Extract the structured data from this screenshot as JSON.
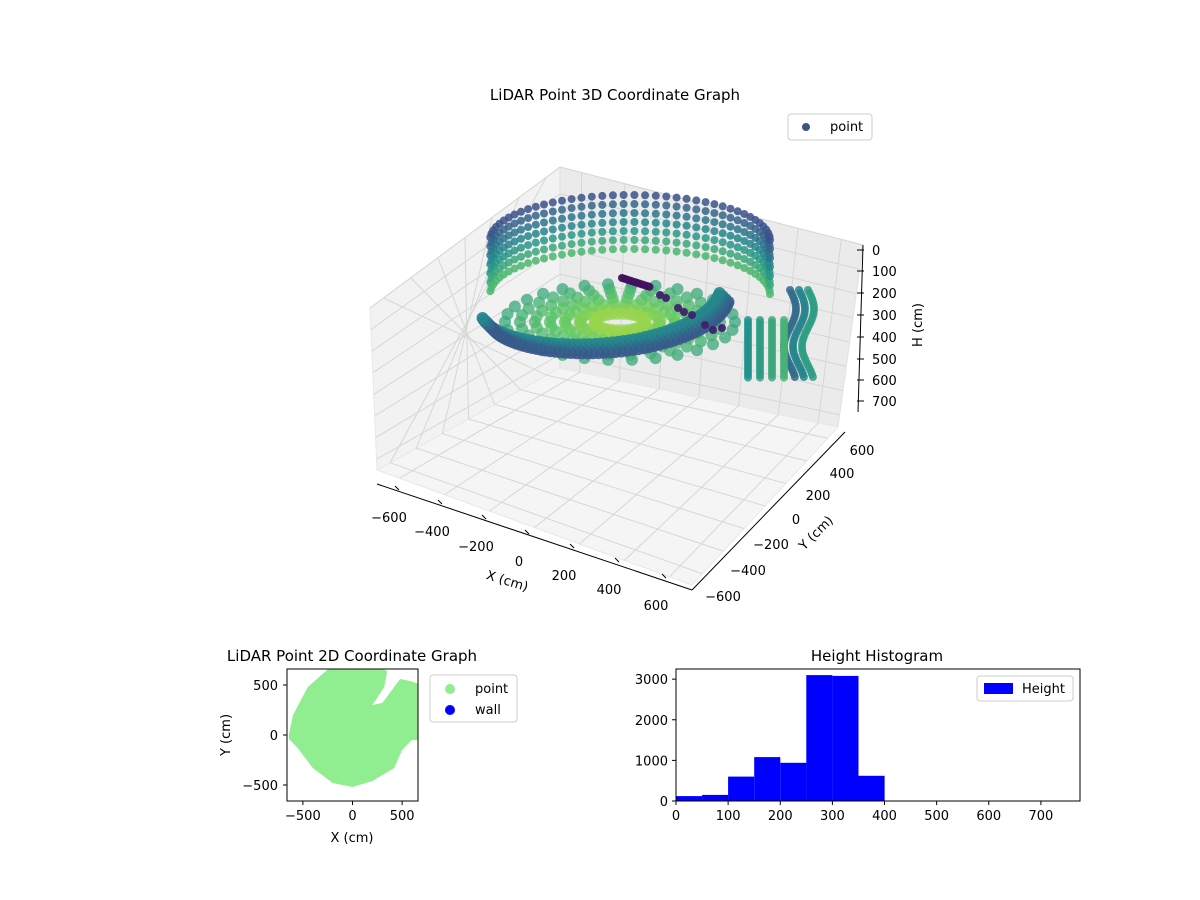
{
  "chart_data": [
    {
      "type": "scatter",
      "title": "LiDAR Point 3D Coordinate Graph",
      "xlabel": "X (cm)",
      "ylabel": "Y (cm)",
      "zlabel": "H (cm)",
      "xticks": [
        "−600",
        "−400",
        "−200",
        "0",
        "200",
        "400",
        "600"
      ],
      "yticks": [
        "−600",
        "−400",
        "−200",
        "0",
        "200",
        "400",
        "600"
      ],
      "zticks": [
        "0",
        "100",
        "200",
        "300",
        "400",
        "500",
        "600",
        "700"
      ],
      "xlim": [
        -650,
        650
      ],
      "ylim": [
        -650,
        650
      ],
      "zlim": [
        0,
        750
      ],
      "z_axis_inverted": true,
      "grid": true,
      "legend": {
        "position": "top-right",
        "entries": [
          {
            "name": "point",
            "color": "#3b528b"
          }
        ]
      },
      "colormap": "viridis"
    },
    {
      "type": "scatter",
      "title": "LiDAR Point 2D Coordinate Graph",
      "xlabel": "X (cm)",
      "ylabel": "Y (cm)",
      "xticks": [
        "−500",
        "0",
        "500"
      ],
      "yticks": [
        "−500",
        "0",
        "500"
      ],
      "xlim": [
        -660,
        660
      ],
      "ylim": [
        -660,
        660
      ],
      "grid": false,
      "legend": {
        "position": "outside-right",
        "entries": [
          {
            "name": "point",
            "color": "#90ee90"
          },
          {
            "name": "wall",
            "color": "#0000ff"
          }
        ]
      }
    },
    {
      "type": "bar",
      "title": "Height Histogram",
      "xlabel": "",
      "ylabel": "",
      "bin_edges": [
        0,
        50,
        100,
        150,
        200,
        250,
        300,
        350,
        400,
        450,
        500,
        550,
        600,
        650,
        700,
        750
      ],
      "series": [
        {
          "name": "Height",
          "color": "#0000ff",
          "values": [
            120,
            150,
            600,
            1080,
            940,
            3100,
            3080,
            620,
            0,
            0,
            0,
            0,
            0,
            0,
            0
          ]
        }
      ],
      "xticks": [
        "0",
        "100",
        "200",
        "300",
        "400",
        "500",
        "600",
        "700"
      ],
      "yticks": [
        "0",
        "1000",
        "2000",
        "3000"
      ],
      "xlim": [
        0,
        775
      ],
      "ylim": [
        0,
        3250
      ],
      "grid": false,
      "legend": {
        "position": "top-right"
      }
    }
  ]
}
